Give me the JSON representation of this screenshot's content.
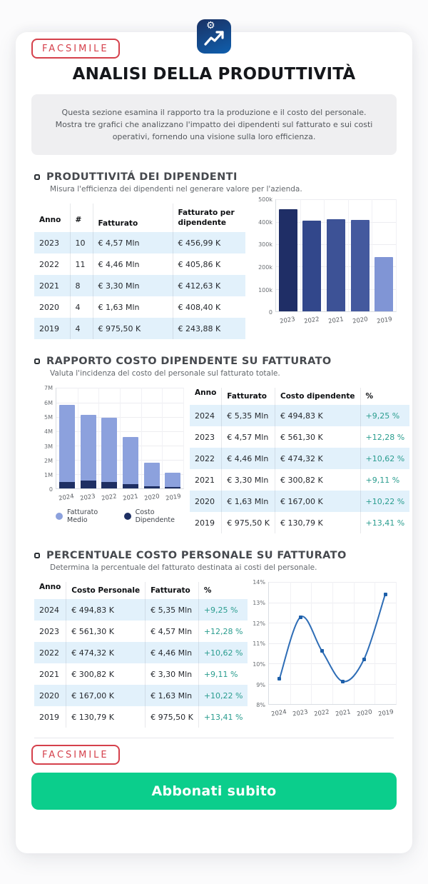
{
  "facsimile_label": "FACSIMILE",
  "header": {
    "title": "ANALISI DELLA PRODUTTIVITÀ",
    "description": "Questa sezione esamina il rapporto tra la produzione e il costo del personale. Mostra tre grafici che analizzano l'impatto dei dipendenti sul fatturato e sui costi operativi, fornendo una visione sulla loro efficienza."
  },
  "sections": [
    {
      "title": "PRODUTTIVITÁ DEI DIPENDENTI",
      "subtitle": "Misura l'efficienza dei dipendenti nel generare valore per l'azienda."
    },
    {
      "title": "RAPPORTO COSTO DIPENDENTE SU FATTURATO",
      "subtitle": "Valuta l'incidenza del costo del personale sul fatturato totale."
    },
    {
      "title": "PERCENTUALE COSTO PERSONALE SU FATTURATO",
      "subtitle": "Determina la percentuale del fatturato destinata ai costi del personale."
    }
  ],
  "tables": [
    {
      "headers": [
        "Anno",
        "#",
        "Fatturato",
        "Fatturato per dipendente"
      ],
      "rows": [
        [
          "2023",
          "10",
          "€ 4,57 Mln",
          "€ 456,99 K"
        ],
        [
          "2022",
          "11",
          "€ 4,46 Mln",
          "€ 405,86 K"
        ],
        [
          "2021",
          "8",
          "€ 3,30 Mln",
          "€ 412,63 K"
        ],
        [
          "2020",
          "4",
          "€ 1,63 Mln",
          "€ 408,40 K"
        ],
        [
          "2019",
          "4",
          "€ 975,50 K",
          "€ 243,88 K"
        ]
      ]
    },
    {
      "headers": [
        "Anno",
        "Fatturato",
        "Costo dipendente",
        "%"
      ],
      "rows": [
        [
          "2024",
          "€ 5,35 Mln",
          "€ 494,83 K",
          "+9,25 %"
        ],
        [
          "2023",
          "€ 4,57 Mln",
          "€ 561,30 K",
          "+12,28 %"
        ],
        [
          "2022",
          "€ 4,46 Mln",
          "€ 474,32 K",
          "+10,62 %"
        ],
        [
          "2021",
          "€ 3,30 Mln",
          "€ 300,82 K",
          "+9,11 %"
        ],
        [
          "2020",
          "€ 1,63 Mln",
          "€ 167,00 K",
          "+10,22 %"
        ],
        [
          "2019",
          "€ 975,50 K",
          "€ 130,79 K",
          "+13,41 %"
        ]
      ]
    },
    {
      "headers": [
        "Anno",
        "Costo Personale",
        "Fatturato",
        "%"
      ],
      "rows": [
        [
          "2024",
          "€ 494,83 K",
          "€ 5,35 Mln",
          "+9,25 %"
        ],
        [
          "2023",
          "€ 561,30 K",
          "€ 4,57 Mln",
          "+12,28 %"
        ],
        [
          "2022",
          "€ 474,32 K",
          "€ 4,46 Mln",
          "+10,62 %"
        ],
        [
          "2021",
          "€ 300,82 K",
          "€ 3,30 Mln",
          "+9,11 %"
        ],
        [
          "2020",
          "€ 167,00 K",
          "€ 1,63 Mln",
          "+10,22 %"
        ],
        [
          "2019",
          "€ 130,79 K",
          "€ 975,50 K",
          "+13,41 %"
        ]
      ]
    }
  ],
  "chart_data": [
    {
      "type": "bar",
      "title": "Fatturato per dipendente",
      "categories": [
        "2023",
        "2022",
        "2021",
        "2020",
        "2019"
      ],
      "values": [
        456990,
        405860,
        412630,
        408400,
        243880
      ],
      "ylim": [
        0,
        500000
      ],
      "yticks": [
        "500k",
        "400k",
        "300k",
        "200k",
        "100k",
        "0"
      ],
      "bar_colors": [
        "#1f2e66",
        "#32478b",
        "#3d5296",
        "#44599e",
        "#8095d5"
      ],
      "grid": true,
      "legend": false
    },
    {
      "type": "stacked-bar",
      "title": "Rapporto costo dipendente su fatturato",
      "categories": [
        "2024",
        "2023",
        "2022",
        "2021",
        "2020",
        "2019"
      ],
      "series": [
        {
          "name": "Fatturato Medio",
          "color": "#8ca1dd",
          "values": [
            5350000,
            4570000,
            4460000,
            3300000,
            1630000,
            975500
          ]
        },
        {
          "name": "Costo Dipendente",
          "color": "#1e2f63",
          "values": [
            494830,
            561300,
            474320,
            300820,
            167000,
            130790
          ]
        }
      ],
      "ylim": [
        0,
        7000000
      ],
      "yticks": [
        "7M",
        "6M",
        "5M",
        "4M",
        "3M",
        "2M",
        "1M",
        "0"
      ],
      "grid": true,
      "legend": true,
      "legend_position": "bottom"
    },
    {
      "type": "line",
      "title": "Percentuale costo personale su fatturato",
      "categories": [
        "2024",
        "2023",
        "2022",
        "2021",
        "2020",
        "2019"
      ],
      "values": [
        9.25,
        12.28,
        10.62,
        9.11,
        10.22,
        13.41
      ],
      "ylim": [
        8,
        14
      ],
      "yticks": [
        "14%",
        "13%",
        "12%",
        "11%",
        "10%",
        "9%",
        "8%"
      ],
      "line_color": "#2e6db6",
      "marker_color": "#1d5fa9",
      "grid": true,
      "legend": false
    }
  ],
  "icons": {
    "gear": "⚙"
  },
  "colors": {
    "badge_red": "#d5414c",
    "row_highlight": "#e2f1fb",
    "percent_green": "#2a9d8f",
    "button_green": "#0bce8c",
    "icon_gradient_start": "#1a3163",
    "icon_gradient_end": "#0f5fae"
  },
  "cta": {
    "label": "Abbonati subito"
  }
}
